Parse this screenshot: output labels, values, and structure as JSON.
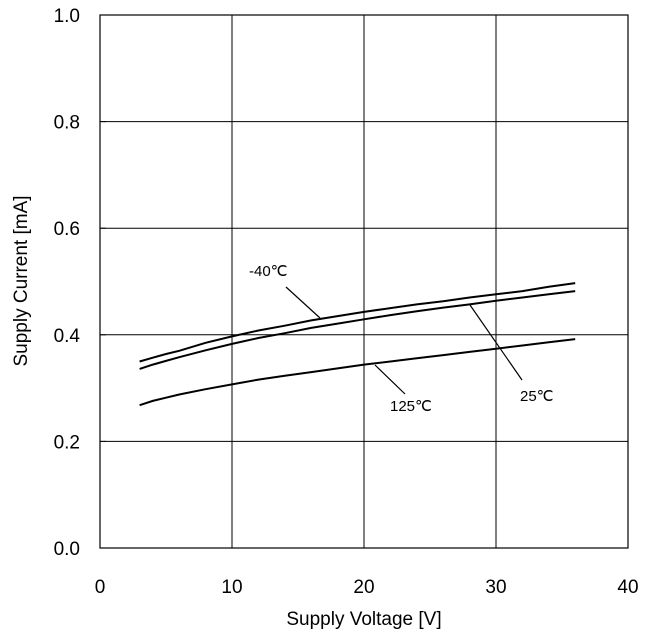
{
  "chart_data": {
    "type": "line",
    "title": "",
    "xlabel": "Supply Voltage [V]",
    "ylabel": "Supply Current [mA]",
    "xlim": [
      0,
      40
    ],
    "ylim": [
      0.0,
      1.0
    ],
    "x_ticks": [
      "0",
      "10",
      "20",
      "30",
      "40"
    ],
    "y_ticks": [
      "0.0",
      "0.2",
      "0.4",
      "0.6",
      "0.8",
      "1.0"
    ],
    "grid": true,
    "legend": "none",
    "series": [
      {
        "name": "-40℃",
        "x": [
          3,
          4,
          5,
          6,
          8,
          10,
          12,
          14,
          16,
          18,
          20,
          22,
          24,
          26,
          28,
          30,
          32,
          34,
          36
        ],
        "y": [
          0.35,
          0.357,
          0.364,
          0.37,
          0.385,
          0.397,
          0.408,
          0.417,
          0.427,
          0.435,
          0.443,
          0.45,
          0.457,
          0.463,
          0.47,
          0.476,
          0.482,
          0.49,
          0.497
        ]
      },
      {
        "name": "25℃",
        "x": [
          3,
          4,
          5,
          6,
          8,
          10,
          12,
          14,
          16,
          18,
          20,
          22,
          24,
          26,
          28,
          30,
          32,
          34,
          36
        ],
        "y": [
          0.336,
          0.344,
          0.351,
          0.358,
          0.371,
          0.383,
          0.394,
          0.403,
          0.413,
          0.421,
          0.429,
          0.437,
          0.444,
          0.451,
          0.457,
          0.464,
          0.47,
          0.476,
          0.482
        ]
      },
      {
        "name": "125℃",
        "x": [
          3,
          4,
          5,
          6,
          8,
          10,
          12,
          14,
          16,
          18,
          20,
          22,
          24,
          26,
          28,
          30,
          32,
          34,
          36
        ],
        "y": [
          0.268,
          0.276,
          0.282,
          0.288,
          0.298,
          0.307,
          0.316,
          0.323,
          0.33,
          0.337,
          0.344,
          0.35,
          0.356,
          0.362,
          0.368,
          0.374,
          0.38,
          0.386,
          0.392
        ]
      }
    ],
    "annotations": [
      {
        "text": "-40℃",
        "series": "-40℃"
      },
      {
        "text": "25℃",
        "series": "25℃"
      },
      {
        "text": "125℃",
        "series": "125℃"
      }
    ]
  }
}
